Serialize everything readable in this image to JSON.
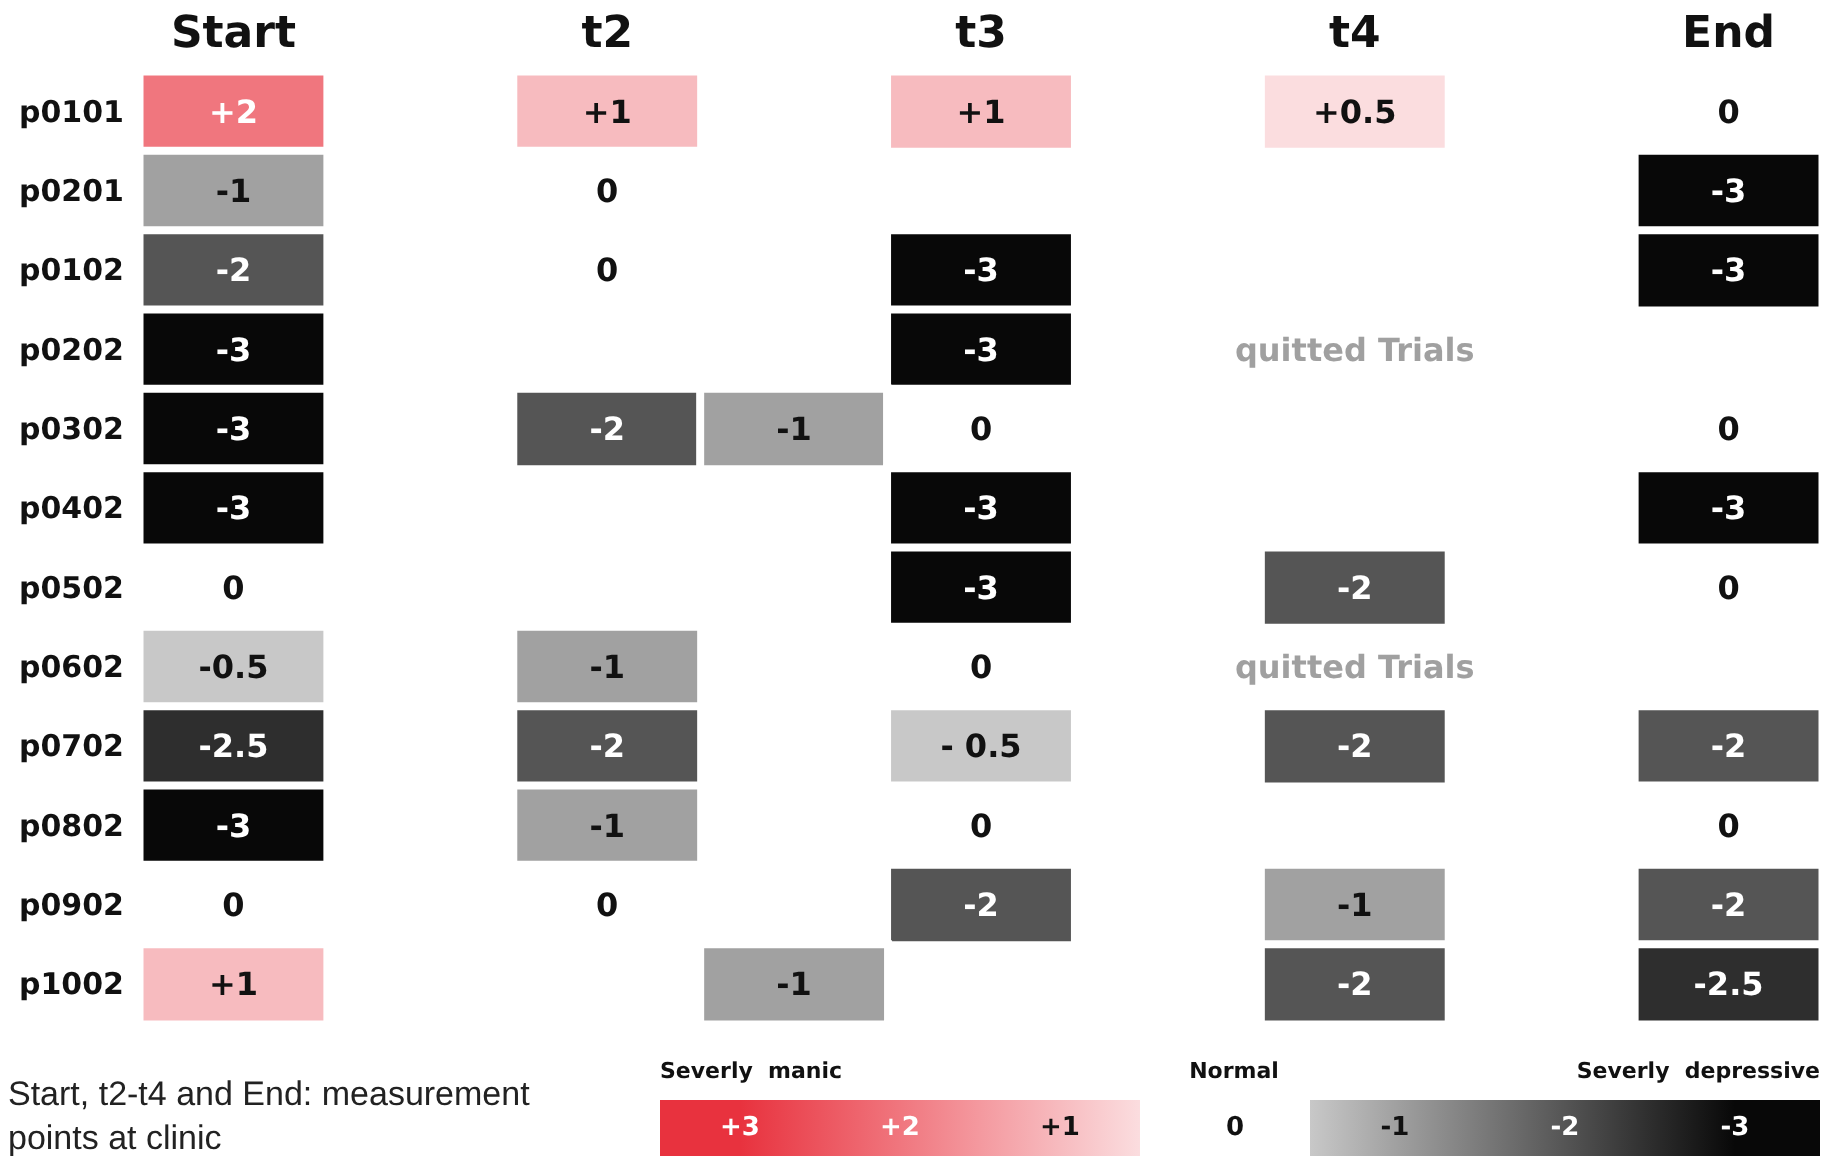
{
  "chart_data": {
    "type": "heatmap",
    "categories": [
      "Start",
      null,
      "t2",
      null,
      "t3",
      null,
      "t4",
      null,
      "End"
    ],
    "y_categories": [
      "p0101",
      "p0201",
      "p0102",
      "p0202",
      "p0302",
      "p0402",
      "p0502",
      "p0602",
      "p0702",
      "p0802",
      "p0902",
      "p1002"
    ],
    "cells": [
      [
        2,
        null,
        1,
        null,
        1,
        null,
        0.5,
        null,
        0
      ],
      [
        -1,
        null,
        0,
        null,
        null,
        null,
        null,
        null,
        -3
      ],
      [
        -2,
        null,
        0,
        null,
        -3,
        null,
        null,
        null,
        -3
      ],
      [
        -3,
        null,
        null,
        null,
        -3,
        null,
        null,
        null,
        null
      ],
      [
        -3,
        null,
        -2,
        -1,
        0,
        null,
        null,
        null,
        0
      ],
      [
        -3,
        null,
        null,
        null,
        -3,
        null,
        null,
        null,
        -3
      ],
      [
        0,
        null,
        null,
        null,
        -3,
        null,
        -2,
        null,
        0
      ],
      [
        -0.5,
        null,
        -1,
        null,
        0,
        null,
        null,
        null,
        null
      ],
      [
        -2.5,
        null,
        -2,
        null,
        -0.5,
        null,
        -2,
        null,
        -2
      ],
      [
        -3,
        null,
        -1,
        null,
        0,
        null,
        null,
        null,
        0
      ],
      [
        0,
        null,
        0,
        null,
        -2,
        null,
        -1,
        null,
        -2
      ],
      [
        1,
        null,
        null,
        -1,
        null,
        null,
        -2,
        null,
        -2.5
      ]
    ],
    "cell_labels": [
      [
        "+2",
        null,
        "+1",
        null,
        "+1",
        null,
        "+0.5",
        null,
        "0"
      ],
      [
        "-1",
        null,
        "0",
        null,
        null,
        null,
        null,
        null,
        "-3"
      ],
      [
        "-2",
        null,
        "0",
        null,
        "-3",
        null,
        null,
        null,
        "-3"
      ],
      [
        "-3",
        null,
        null,
        null,
        "-3",
        null,
        null,
        null,
        null
      ],
      [
        "-3",
        null,
        "-2",
        "-1",
        "0",
        null,
        null,
        null,
        "0"
      ],
      [
        "-3",
        null,
        null,
        null,
        "-3",
        null,
        null,
        null,
        "-3"
      ],
      [
        "0",
        null,
        null,
        null,
        "-3",
        null,
        "-2",
        null,
        "0"
      ],
      [
        "-0.5",
        null,
        "-1",
        null,
        "0",
        null,
        null,
        null,
        null
      ],
      [
        "-2.5",
        null,
        "-2",
        null,
        "- 0.5",
        null,
        "-2",
        null,
        "-2"
      ],
      [
        "-3",
        null,
        "-1",
        null,
        "0",
        null,
        null,
        null,
        "0"
      ],
      [
        "0",
        null,
        "0",
        null,
        "-2",
        null,
        "-1",
        null,
        "-2"
      ],
      [
        "+1",
        null,
        null,
        "-1",
        null,
        null,
        "-2",
        null,
        "-2.5"
      ]
    ],
    "clim": [
      3,
      -3
    ],
    "cticks": [
      {
        "value": 3,
        "label": "+3"
      },
      {
        "value": 2,
        "label": "+2"
      },
      {
        "value": 1,
        "label": "+1"
      },
      {
        "value": 0,
        "label": "0"
      },
      {
        "value": -1,
        "label": "-1"
      },
      {
        "value": -2,
        "label": "-2"
      },
      {
        "value": -3,
        "label": "-3"
      }
    ],
    "annotations": [
      "Start, t2-t4 and End: measurement points at clinic",
      "Severly  manic",
      "Normal",
      "Severly  depressive",
      "quitted Trials",
      "quitted Trials"
    ]
  }
}
